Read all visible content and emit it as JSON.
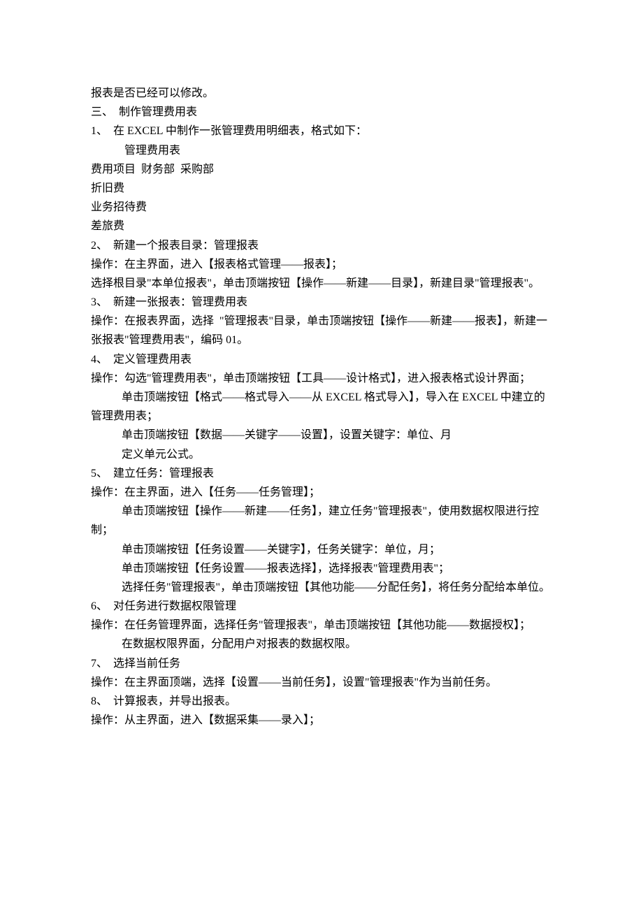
{
  "doc": {
    "line1": "报表是否已经可以修改。",
    "line2": "三、  制作管理费用表",
    "line3": "1、  在 EXCEL 中制作一张管理费用明细表，格式如下：",
    "line4": "管理费用表",
    "line5": "费用项目  财务部  采购部",
    "line6": "折旧费",
    "line7": "业务招待费",
    "line8": "差旅费",
    "line9": "",
    "line10": "2、  新建一个报表目录：管理报表",
    "line11": "操作：在主界面，进入【报表格式管理——报表】；",
    "line12": "选择根目录\"本单位报表\"，单击顶端按钮【操作——新建——目录】，新建目录\"管理报表\"。",
    "line13": "3、  新建一张报表：管理费用表",
    "line14": "操作：在报表界面，选择  \"管理报表\"目录，单击顶端按钮【操作——新建——报表】，新建一张报表\"管理费用表\"，编码 01。",
    "line15": "4、  定义管理费用表",
    "line16": "操作：勾选\"管理费用表\"，单击顶端按钮【工具——设计格式】，进入报表格式设计界面；",
    "line17": "单击顶端按钮【格式——格式导入——从 EXCEL 格式导入】，导入在 EXCEL 中建立的管理费用表；",
    "line18": "单击顶端按钮【数据——关键字——设置】，设置关键字：单位、月",
    "line19": "定义单元公式。",
    "line20": "5、  建立任务：管理报表",
    "line21": "操作：在主界面，进入【任务——任务管理】；",
    "line22": "单击顶端按钮【操作——新建——任务】，建立任务\"管理报表\"，使用数据权限进行控制；",
    "line23": "单击顶端按钮【任务设置——关键字】，任务关键字：单位，月；",
    "line24": "",
    "line25": "单击顶端按钮【任务设置——报表选择】，选择报表\"管理费用表\"；",
    "line26": "选择任务\"管理报表\"，单击顶端按钮【其他功能——分配任务】，将任务分配给本单位。",
    "line27": "6、  对任务进行数据权限管理",
    "line28": "操作：在任务管理界面，选择任务\"管理报表\"，单击顶端按钮【其他功能——数据授权】；",
    "line29": "在数据权限界面，分配用户对报表的数据权限。",
    "line30": "7、  选择当前任务",
    "line31": "操作：在主界面顶端，选择【设置——当前任务】，设置\"管理报表\"作为当前任务。",
    "line32": "8、  计算报表，并导出报表。",
    "line33": "操作：从主界面，进入【数据采集——录入】；"
  }
}
